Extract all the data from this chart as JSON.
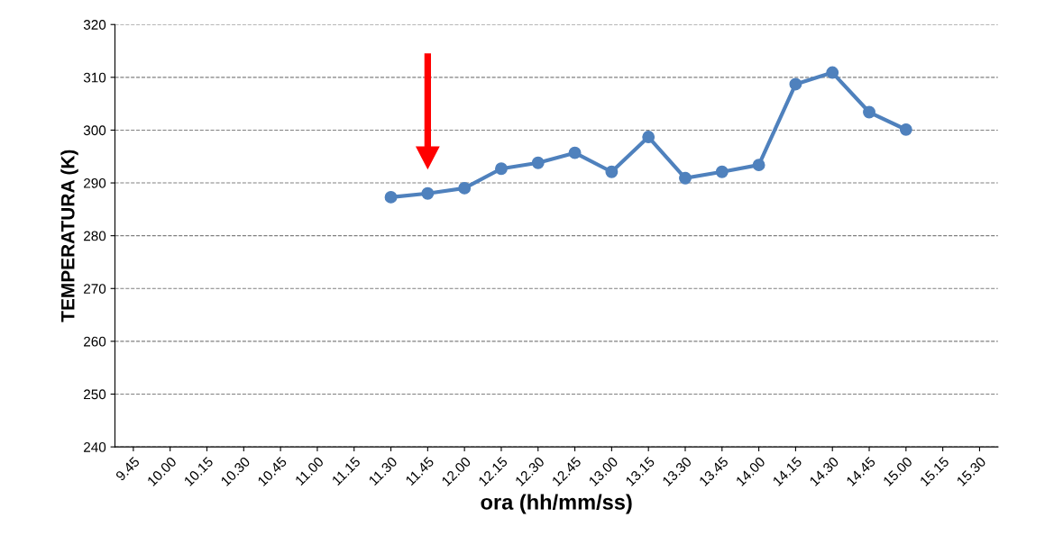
{
  "chart_data": {
    "type": "line",
    "xlabel": "ora (hh/mm/ss)",
    "ylabel": "TEMPERATURA (K)",
    "categories": [
      "9.45",
      "10.00",
      "10.15",
      "10.30",
      "10.45",
      "11.00",
      "11.15",
      "11.30",
      "11.45",
      "12.00",
      "12.15",
      "12.30",
      "12.45",
      "13.00",
      "13.15",
      "13.30",
      "13.45",
      "14.00",
      "14.15",
      "14.30",
      "14.45",
      "15.00",
      "15.15",
      "15.30"
    ],
    "series": [
      {
        "color": "#4f81bd",
        "values": [
          null,
          null,
          null,
          null,
          null,
          null,
          null,
          287.3,
          288.0,
          289.0,
          292.7,
          293.8,
          295.7,
          292.1,
          298.7,
          290.9,
          292.1,
          293.4,
          308.7,
          310.9,
          303.4,
          300.1,
          null,
          null
        ]
      }
    ],
    "ylim": [
      240,
      320
    ],
    "yticks": [
      240,
      250,
      260,
      270,
      280,
      290,
      300,
      310,
      320
    ],
    "grid": "y",
    "marker": "circle",
    "line_style": "solid",
    "legend": false
  }
}
